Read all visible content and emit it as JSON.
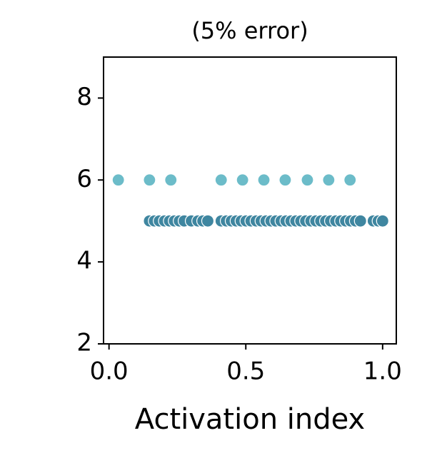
{
  "chart_data": {
    "type": "scatter",
    "title": "(5% error)",
    "x_label": "Activation index",
    "xlim": [
      -0.02,
      1.05
    ],
    "ylim": [
      2,
      9
    ],
    "xticks": [
      {
        "value": 0,
        "label": "0.0"
      },
      {
        "value": 0.5,
        "label": "0.5"
      },
      {
        "value": 1,
        "label": "1.0"
      }
    ],
    "yticks": [
      2,
      4,
      6,
      8
    ],
    "series": [
      {
        "color": "#6cbcc9",
        "x": [
          0.034,
          0.148,
          0.226,
          0.41,
          0.488,
          0.566,
          0.644,
          0.725,
          0.803,
          0.881
        ],
        "values": [
          6,
          6,
          6,
          6,
          6,
          6,
          6,
          6,
          6,
          6
        ]
      },
      {
        "color": "#3f86a0",
        "x": [
          0.148,
          0.166,
          0.184,
          0.203,
          0.221,
          0.239,
          0.257,
          0.275,
          0.301,
          0.325,
          0.343,
          0.361,
          0.41,
          0.429,
          0.447,
          0.465,
          0.483,
          0.501,
          0.519,
          0.538,
          0.556,
          0.574,
          0.592,
          0.61,
          0.629,
          0.647,
          0.665,
          0.683,
          0.701,
          0.719,
          0.738,
          0.756,
          0.774,
          0.792,
          0.81,
          0.829,
          0.847,
          0.865,
          0.883,
          0.901,
          0.919,
          0.966,
          0.984,
          1.0
        ],
        "values": [
          5,
          5,
          5,
          5,
          5,
          5,
          5,
          5,
          5,
          5,
          5,
          5,
          5,
          5,
          5,
          5,
          5,
          5,
          5,
          5,
          5,
          5,
          5,
          5,
          5,
          5,
          5,
          5,
          5,
          5,
          5,
          5,
          5,
          5,
          5,
          5,
          5,
          5,
          5,
          5,
          5,
          5,
          5,
          5
        ]
      }
    ]
  }
}
